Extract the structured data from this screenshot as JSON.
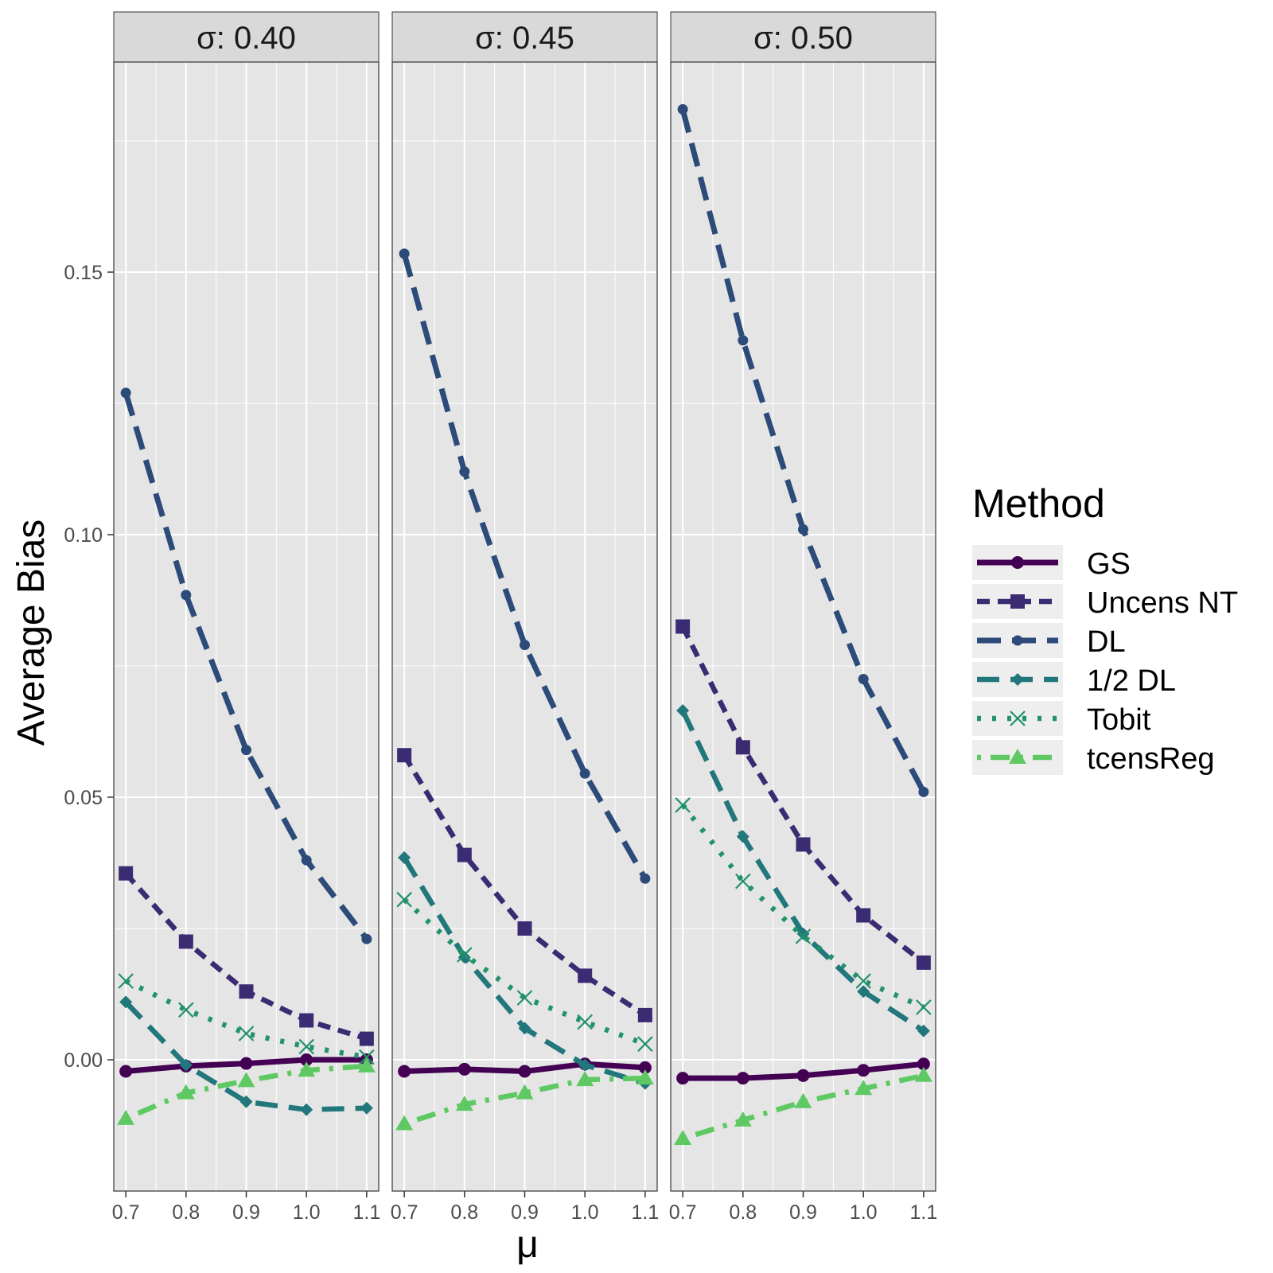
{
  "chart_data": {
    "type": "line",
    "facet_variable": "σ",
    "facets": [
      {
        "label": "σ: 0.40",
        "series": {
          "GS": [
            -0.0022,
            -0.0012,
            -0.0007,
            0.0,
            0.0
          ],
          "Uncens NT": [
            0.0355,
            0.0225,
            0.013,
            0.0075,
            0.004
          ],
          "DL": [
            0.127,
            0.0885,
            0.059,
            0.038,
            0.023
          ],
          "1/2 DL": [
            0.011,
            -0.001,
            -0.008,
            -0.0095,
            -0.0092
          ],
          "Tobit": [
            0.015,
            0.0095,
            0.005,
            0.0025,
            0.0005
          ],
          "tcensReg": [
            -0.0112,
            -0.0063,
            -0.004,
            -0.002,
            -0.0012
          ]
        }
      },
      {
        "label": "σ: 0.45",
        "series": {
          "GS": [
            -0.0022,
            -0.0018,
            -0.0022,
            -0.0008,
            -0.0015
          ],
          "Uncens NT": [
            0.058,
            0.039,
            0.025,
            0.016,
            0.0085
          ],
          "DL": [
            0.1535,
            0.112,
            0.079,
            0.0545,
            0.0345
          ],
          "1/2 DL": [
            0.0385,
            0.0195,
            0.006,
            -0.001,
            -0.0045
          ],
          "Tobit": [
            0.0305,
            0.02,
            0.0118,
            0.0072,
            0.003
          ],
          "tcensReg": [
            -0.0122,
            -0.0085,
            -0.0063,
            -0.0038,
            -0.0035
          ]
        }
      },
      {
        "label": "σ: 0.50",
        "series": {
          "GS": [
            -0.0035,
            -0.0035,
            -0.003,
            -0.002,
            -0.0008
          ],
          "Uncens NT": [
            0.0825,
            0.0595,
            0.041,
            0.0275,
            0.0185
          ],
          "DL": [
            0.181,
            0.137,
            0.101,
            0.0725,
            0.051
          ],
          "1/2 DL": [
            0.0665,
            0.0425,
            0.024,
            0.013,
            0.0055
          ],
          "Tobit": [
            0.0485,
            0.034,
            0.0235,
            0.015,
            0.01
          ],
          "tcensReg": [
            -0.015,
            -0.0115,
            -0.008,
            -0.0055,
            -0.003
          ]
        }
      }
    ],
    "x": [
      0.7,
      0.8,
      0.9,
      1.0,
      1.1
    ],
    "x_tick_labels": [
      "0.7",
      "0.8",
      "0.9",
      "1.0",
      "1.1"
    ],
    "y_ticks": [
      0.0,
      0.05,
      0.1,
      0.15
    ],
    "y_tick_labels": [
      "0.00",
      "0.05",
      "0.10",
      "0.15"
    ],
    "xlim": [
      0.68,
      1.12
    ],
    "ylim": [
      -0.025,
      0.19
    ],
    "xlabel": "μ",
    "ylabel": "Average Bias",
    "legend": {
      "title": "Method",
      "position": "right",
      "entries": [
        {
          "name": "GS",
          "color": "#440154",
          "dash": "solid",
          "marker": "circle"
        },
        {
          "name": "Uncens NT",
          "color": "#3b2b72",
          "dash": "dashed",
          "marker": "square"
        },
        {
          "name": "DL",
          "color": "#2c4b79",
          "dash": "longdash",
          "marker": "circle-small"
        },
        {
          "name": "1/2 DL",
          "color": "#21777b",
          "dash": "dashed-diamond",
          "marker": "diamond"
        },
        {
          "name": "Tobit",
          "color": "#22926a",
          "dash": "dotted",
          "marker": "cross"
        },
        {
          "name": "tcensReg",
          "color": "#5ec962",
          "dash": "dotdash",
          "marker": "triangle"
        }
      ]
    },
    "colors": {
      "panel_background": "#e5e5e5",
      "strip_background": "#d9d9d9",
      "grid": "#ffffff"
    }
  }
}
